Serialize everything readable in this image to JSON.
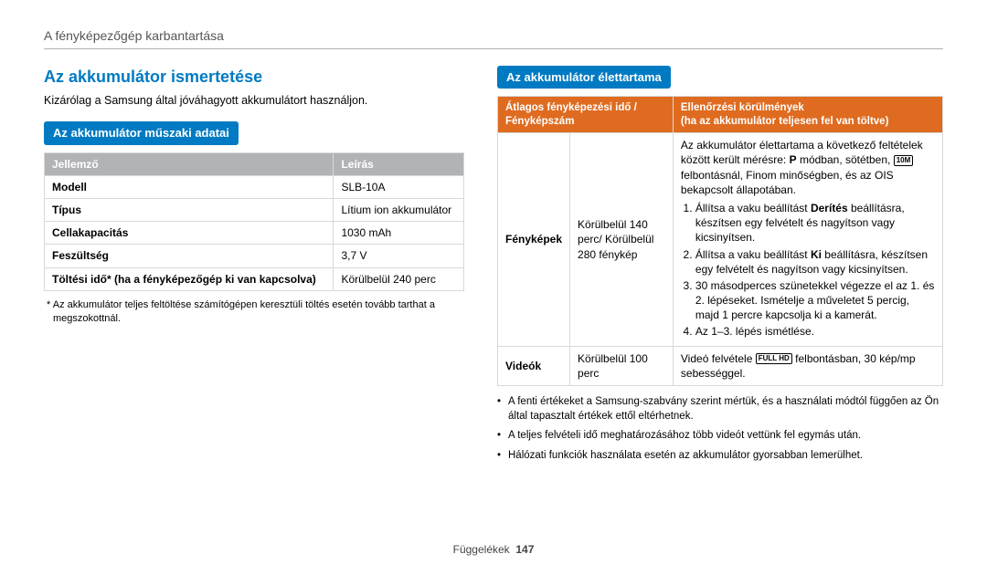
{
  "header": {
    "breadcrumb": "A fényképezőgép karbantartása"
  },
  "left": {
    "heading": "Az akkumulátor ismertetése",
    "intro": "Kizárólag a Samsung által jóváhagyott akkumulátort használjon.",
    "subheading": "Az akkumulátor műszaki adatai",
    "specs": {
      "th1": "Jellemző",
      "th2": "Leírás",
      "rows": [
        {
          "k": "Modell",
          "v": "SLB-10A"
        },
        {
          "k": "Típus",
          "v": "Lítium ion akkumulátor"
        },
        {
          "k": "Cellakapacitás",
          "v": "1030 mAh"
        },
        {
          "k": "Feszültség",
          "v": "3,7 V"
        },
        {
          "k": "Töltési idő* (ha a fényképezőgép ki van kapcsolva)",
          "v": "Körülbelül 240 perc"
        }
      ]
    },
    "footnote": "* Az akkumulátor teljes feltöltése számítógépen keresztüli töltés esetén tovább tarthat a megszokottnál."
  },
  "right": {
    "subheading": "Az akkumulátor élettartama",
    "th_left_l1": "Átlagos fényképezési idő /",
    "th_left_l2": "Fényképszám",
    "th_right_l1": "Ellenőrzési körülmények",
    "th_right_l2": "(ha az akkumulátor teljesen fel van töltve)",
    "photos": {
      "label": "Fényképek",
      "avg": "Körülbelül 140 perc/ Körülbelül 280 fénykép",
      "para1a": "Az akkumulátor élettartama a következő feltételek között került mérésre: ",
      "para1b": " módban, sötétben, ",
      "para1c": " felbontásnál, Finom minőségben, és az OIS bekapcsolt állapotában.",
      "mode_icon": "P",
      "res_icon": "10M",
      "step1a": "Állítsa a vaku beállítást ",
      "step1b": "Derítés",
      "step1c": " beállításra, készítsen egy felvételt és nagyítson vagy kicsinyítsen.",
      "step2a": "Állítsa a vaku beállítást ",
      "step2b": "Ki",
      "step2c": " beállításra, készítsen egy felvételt és nagyítson vagy kicsinyítsen.",
      "step3": "30 másodperces szünetekkel végezze el az 1. és 2. lépéseket. Ismételje a műveletet 5 percig, majd 1 percre kapcsolja ki a kamerát.",
      "step4": "Az 1–3. lépés ismétlése."
    },
    "videos": {
      "label": "Videók",
      "avg": "Körülbelül 100 perc",
      "desc_a": "Videó felvétele ",
      "desc_icon": "FULL HD",
      "desc_b": " felbontásban, 30 kép/mp sebességgel."
    },
    "bullets": [
      "A fenti értékeket a Samsung-szabvány szerint mértük, és a használati módtól függően az Ön által tapasztalt értékek ettől eltérhetnek.",
      "A teljes felvételi idő meghatározásához több videót vettünk fel egymás után.",
      "Hálózati funkciók használata esetén az akkumulátor gyorsabban lemerülhet."
    ]
  },
  "footer": {
    "section": "Függelékek",
    "page": "147"
  }
}
